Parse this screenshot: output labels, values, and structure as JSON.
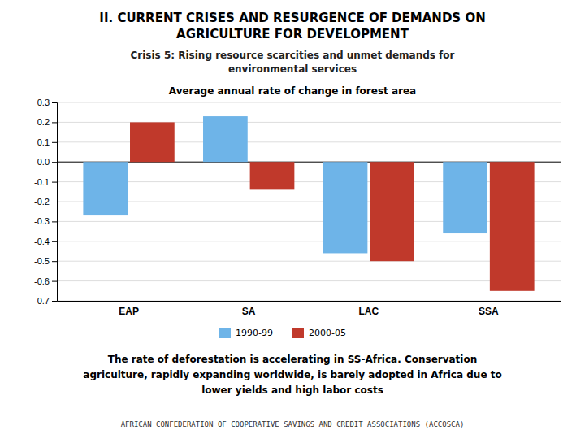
{
  "chart_data": {
    "type": "bar",
    "heading": [
      "II. CURRENT CRISES AND RESURGENCE OF DEMANDS ON",
      "AGRICULTURE FOR DEVELOPMENT"
    ],
    "subtitle": [
      "Crisis 5: Rising resource scarcities and unmet demands for",
      "environmental services"
    ],
    "title": "Average annual rate of change in forest area",
    "categories": [
      "EAP",
      "SA",
      "LAC",
      "SSA"
    ],
    "series": [
      {
        "name": "1990-99",
        "color": "#6EB4E8",
        "values": [
          -0.27,
          0.23,
          -0.46,
          -0.36
        ]
      },
      {
        "name": "2000-05",
        "color": "#C0392B",
        "values": [
          0.2,
          -0.14,
          -0.5,
          -0.65
        ]
      }
    ],
    "ylim": [
      -0.7,
      0.3
    ],
    "yticks": [
      -0.7,
      -0.6,
      -0.5,
      -0.4,
      -0.3,
      -0.2,
      -0.1,
      {
        "value": 0,
        "label": "0.0"
      },
      0.1,
      0.2,
      0.3
    ],
    "grid": true,
    "legend": "bottom",
    "notes": [
      "The rate of deforestation is accelerating in SS-Africa. Conservation",
      "agriculture, rapidly expanding worldwide, is barely adopted in Africa due to",
      "lower yields and high labor costs"
    ],
    "footer": "AFRICAN CONFEDERATION OF COOPERATIVE SAVINGS AND CREDIT ASSOCIATIONS (ACCOSCA)"
  }
}
